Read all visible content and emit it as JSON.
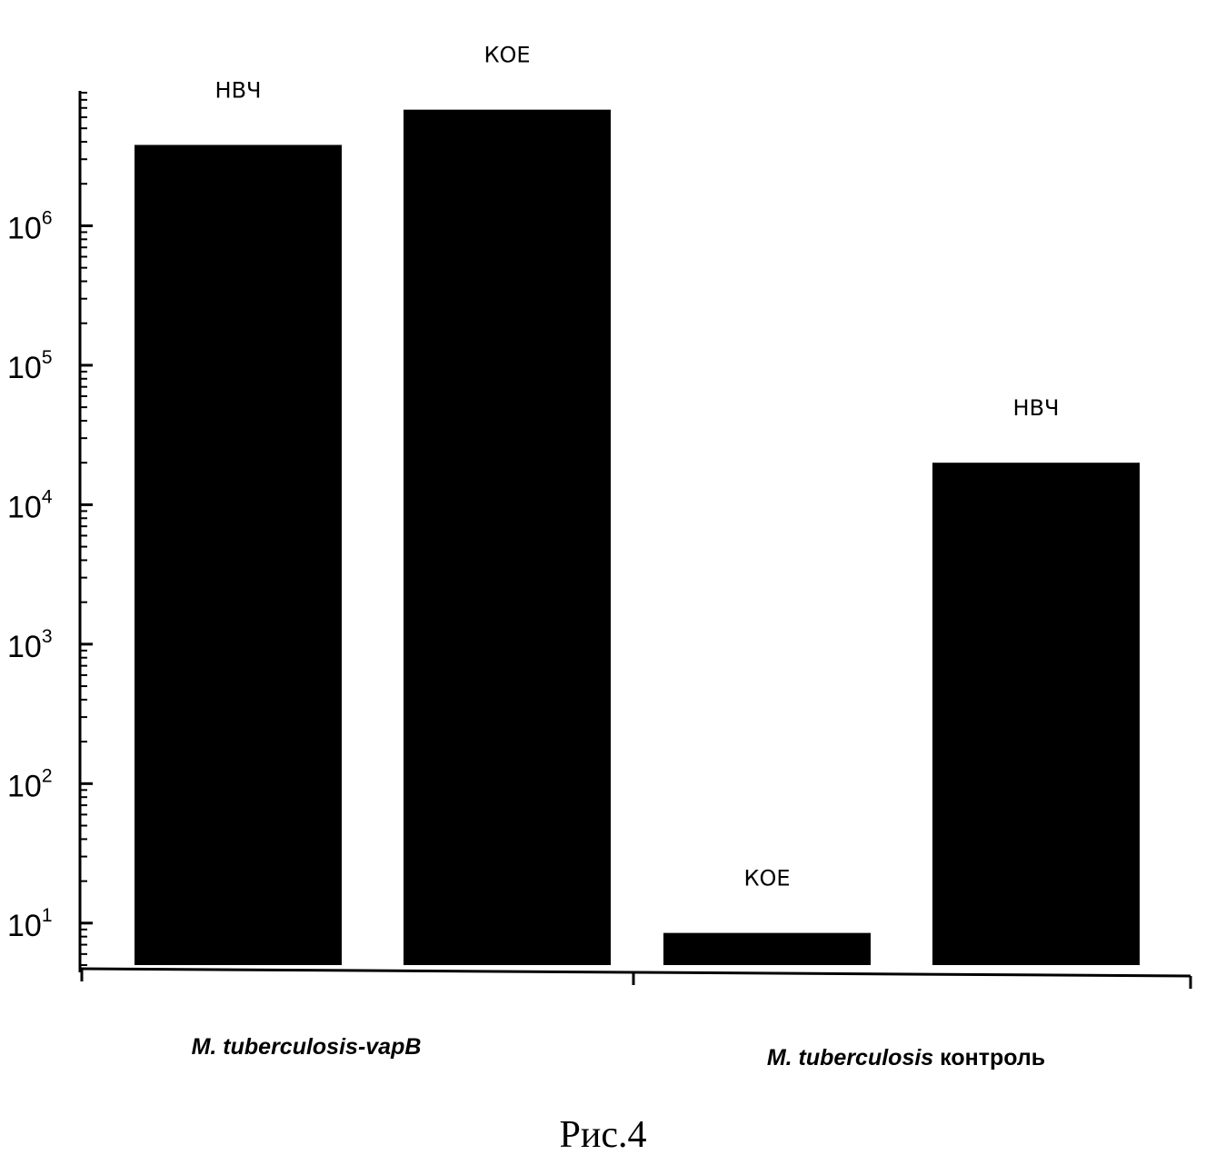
{
  "chart_data": {
    "type": "bar",
    "yscale": "log",
    "ylim": [
      5,
      9000000
    ],
    "grid": false,
    "legend": "none",
    "bar_color": "#000000",
    "y_tick_labels": [
      {
        "base": "10",
        "exp": "1",
        "value": 10
      },
      {
        "base": "10",
        "exp": "2",
        "value": 100
      },
      {
        "base": "10",
        "exp": "3",
        "value": 1000
      },
      {
        "base": "10",
        "exp": "4",
        "value": 10000
      },
      {
        "base": "10",
        "exp": "5",
        "value": 100000
      },
      {
        "base": "10",
        "exp": "6",
        "value": 1000000
      }
    ],
    "groups": [
      {
        "label_italic": "M. tuberculosis-vapB",
        "label_plain": "",
        "bars": [
          {
            "label": "НВЧ",
            "value": 3800000
          },
          {
            "label": "КОЕ",
            "value": 6800000
          }
        ]
      },
      {
        "label_italic": "M. tuberculosis",
        "label_plain": " контроль",
        "bars": [
          {
            "label": "КОЕ",
            "value": 8.5
          },
          {
            "label": "НВЧ",
            "value": 20000
          }
        ]
      }
    ]
  },
  "caption": "Рис.4"
}
